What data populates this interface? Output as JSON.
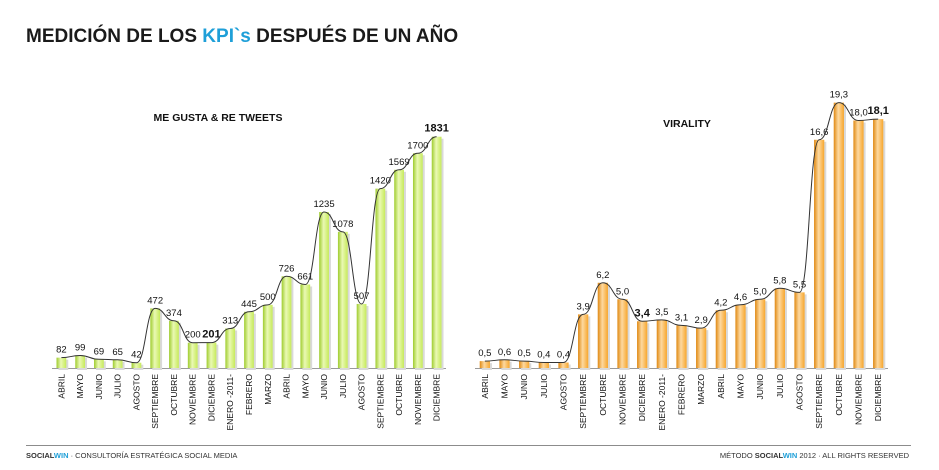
{
  "header": {
    "title_before": "MEDICIÓN DE LOS ",
    "title_highlight": "KPI`s",
    "title_after": " DESPUÉS DE UN AÑO"
  },
  "colors": {
    "accent": "#1e9fd8",
    "green_bar": "#c6ea5a",
    "orange_bar": "#f7a62c",
    "line": "#333333"
  },
  "chart_data": [
    {
      "type": "bar",
      "title": "ME GUSTA  & RE TWEETS",
      "categories": [
        "ABRIL",
        "MAYO",
        "JUNIO",
        "JULIO",
        "AGOSTO",
        "SEPTIEMBRE",
        "OCTUBRE",
        "NOVIEMBRE",
        "DICIEMBRE",
        "ENERO -2011-",
        "FEBRERO",
        "MARZO",
        "ABRIL",
        "MAYO",
        "JUNIO",
        "JULIO",
        "AGOSTO",
        "SEPTIEMBRE",
        "OCTUBRE",
        "NOVIEMBRE",
        "DICIEMBRE"
      ],
      "values": [
        82,
        99,
        69,
        65,
        42,
        472,
        374,
        200,
        201,
        313,
        445,
        500,
        726,
        661,
        1235,
        1078,
        507,
        1420,
        1569,
        1700,
        1831
      ],
      "labels": [
        "82",
        "99",
        "69",
        "65",
        "42",
        "472",
        "374",
        "200",
        "201",
        "313",
        "445",
        "500",
        "726",
        "661",
        "1235",
        "1078",
        "507",
        "1420",
        "1569",
        "1700",
        "1831"
      ],
      "bold_labels": [
        8,
        20
      ],
      "ylim": [
        0,
        1900
      ],
      "trendline": true,
      "grid": false,
      "xlabel": "",
      "ylabel": ""
    },
    {
      "type": "bar",
      "title": "VIRALITY",
      "categories": [
        "ABRIL",
        "MAYO",
        "JUNIO",
        "JULIO",
        "AGOSTO",
        "SEPTIEMBRE",
        "OCTUBRE",
        "NOVIEMBRE",
        "DICIEMBRE",
        "ENERO -2011-",
        "FEBRERO",
        "MARZO",
        "ABRIL",
        "MAYO",
        "JUNIO",
        "JULIO",
        "AGOSTO",
        "SEPTIEMBRE",
        "OCTUBRE",
        "NOVIEMBRE",
        "DICIEMBRE"
      ],
      "values": [
        0.5,
        0.6,
        0.5,
        0.4,
        0.4,
        3.9,
        6.2,
        5.0,
        3.4,
        3.5,
        3.1,
        2.9,
        4.2,
        4.6,
        5.0,
        5.8,
        5.5,
        16.6,
        19.3,
        18.0,
        18.1
      ],
      "labels": [
        "0,5",
        "0,6",
        "0,5",
        "0,4",
        "0,4",
        "3,9",
        "6,2",
        "5,0",
        "3,4",
        "3,5",
        "3,1",
        "2,9",
        "4,2",
        "4,6",
        "5,0",
        "5,8",
        "5,5",
        "16,6",
        "19,3",
        "18,0",
        "18,1"
      ],
      "bold_labels": [
        8,
        20
      ],
      "ylim": [
        0,
        20
      ],
      "trendline": true,
      "grid": false,
      "xlabel": "",
      "ylabel": ""
    }
  ],
  "footer": {
    "left_brand_a": "SOCIAL",
    "left_brand_b": "WIN",
    "left_text": " · CONSULTORÍA ESTRATÉGICA SOCIAL MEDIA",
    "right_text_a": "MÉTODO ",
    "right_brand_a": "SOCIAL",
    "right_brand_b": "WIN",
    "right_text_b": " 2012 · ALL RIGHTS RESERVED"
  }
}
